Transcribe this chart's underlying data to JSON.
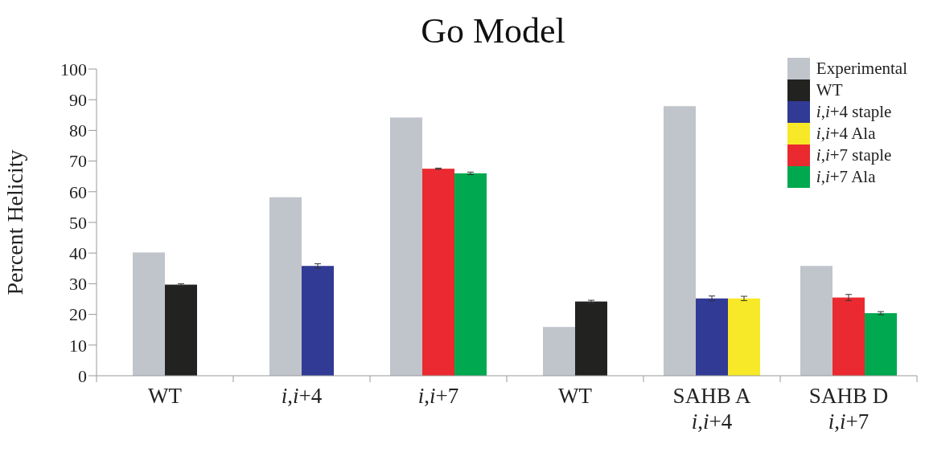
{
  "chart_data": {
    "type": "bar",
    "title": "Go Model",
    "ylabel": "Percent Helicity",
    "categories": [
      "WT",
      "i,i+4",
      "i,i+7",
      "WT",
      "SAHB A\ni,i+4",
      "SAHB D\ni,i+7"
    ],
    "series": [
      {
        "name": "Experimental",
        "color": "#c0c4cb",
        "values": [
          40.2,
          58.2,
          84.2,
          15.9,
          87.9,
          35.8
        ]
      },
      {
        "name": "WT",
        "color": "#222220",
        "values": [
          29.7,
          null,
          null,
          24.2,
          null,
          null
        ],
        "errors": [
          0.3,
          null,
          null,
          0.4,
          null,
          null
        ]
      },
      {
        "name": "i,i+4 staple",
        "color": "#313a95",
        "values": [
          null,
          35.8,
          null,
          null,
          25.2,
          null
        ],
        "errors": [
          null,
          0.7,
          null,
          null,
          0.8,
          null
        ]
      },
      {
        "name": "i,i+4 Ala",
        "color": "#f7e928",
        "values": [
          null,
          null,
          null,
          null,
          25.2,
          null
        ],
        "errors": [
          null,
          null,
          null,
          null,
          0.7,
          null
        ]
      },
      {
        "name": "i,i+7 staple",
        "color": "#ea2a30",
        "values": [
          null,
          null,
          67.5,
          null,
          null,
          25.5
        ],
        "errors": [
          null,
          null,
          0.2,
          null,
          null,
          1.0
        ]
      },
      {
        "name": "i,i+7 Ala",
        "color": "#00a94f",
        "values": [
          null,
          null,
          66.0,
          null,
          null,
          20.4
        ],
        "errors": [
          null,
          null,
          0.4,
          null,
          null,
          0.5
        ]
      }
    ],
    "ylim": [
      0,
      100
    ],
    "yticks": [
      0,
      10,
      20,
      30,
      40,
      50,
      60,
      70,
      80,
      90,
      100
    ],
    "legend": "top right"
  }
}
